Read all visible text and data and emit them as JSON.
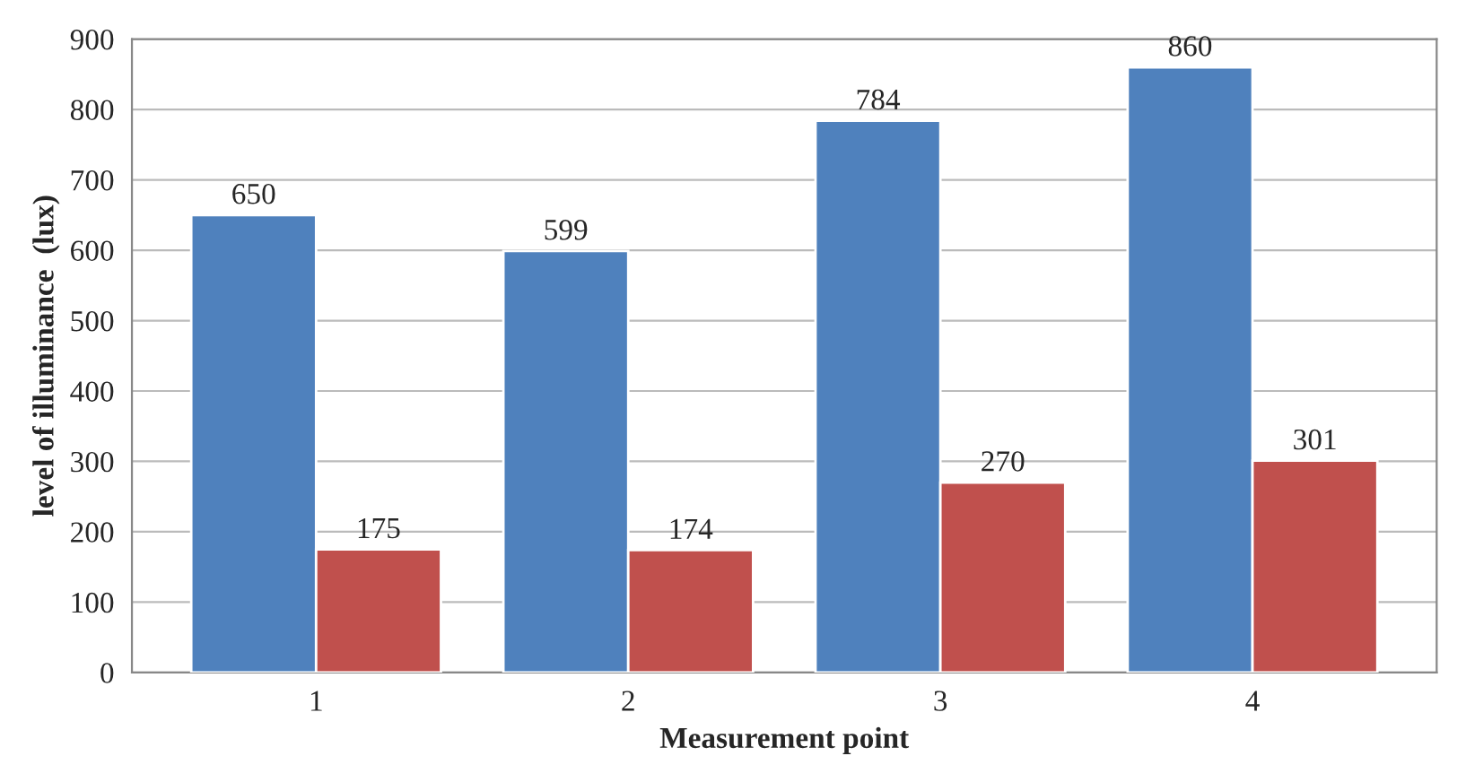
{
  "chart_data": {
    "type": "bar",
    "xlabel": "Measurement point",
    "ylabel": "level of illuminance  (lux)",
    "categories": [
      "1",
      "2",
      "3",
      "4"
    ],
    "series": [
      {
        "color": "#4f81bd",
        "values": [
          650,
          599,
          784,
          860
        ]
      },
      {
        "color": "#c0504d",
        "values": [
          175,
          174,
          270,
          301
        ]
      }
    ],
    "ylim": [
      0,
      900
    ],
    "yticks": [
      0,
      100,
      200,
      300,
      400,
      500,
      600,
      700,
      800,
      900
    ],
    "grid": "y",
    "data_labels": true
  }
}
